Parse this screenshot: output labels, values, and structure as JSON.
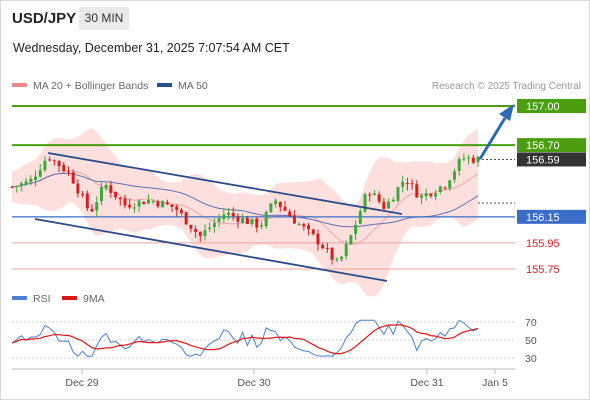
{
  "header": {
    "symbol": "USD/JPY",
    "timeframe": "30 MIN",
    "datetime": "Wednesday, December 31, 2025 7:07:54 AM CET"
  },
  "legend": {
    "ma20": {
      "label": "MA 20 + Bollinger Bands",
      "color": "#f08a8a"
    },
    "ma50": {
      "label": "MA 50",
      "color": "#2a4f8f"
    },
    "credit": "Research © 2025 Trading Central"
  },
  "colors": {
    "up": "#3aaa3a",
    "down": "#d62020",
    "green_level": "#4a9e10",
    "blue_level": "#3a6cc8",
    "red_level": "#d62020",
    "current": "#333333",
    "channel": "#2a4a8a",
    "arrow": "#2d6ab4",
    "band_fill": "#fde0de",
    "rsi": "#4a7fd4",
    "rsi_ma": "#e01515"
  },
  "chart_data": {
    "type": "candlestick",
    "ylim": [
      155.55,
      157.1
    ],
    "current_price": "156.59",
    "levels": [
      {
        "label": "157.00",
        "value": 157.0,
        "kind": "resistance"
      },
      {
        "label": "156.70",
        "value": 156.7,
        "kind": "resistance"
      },
      {
        "label": "156.15",
        "value": 156.15,
        "kind": "pivot"
      },
      {
        "label": "155.95",
        "value": 155.95,
        "kind": "support"
      },
      {
        "label": "155.75",
        "value": 155.75,
        "kind": "support"
      }
    ],
    "x_tick_labels": [
      "Dec 29",
      "Dec 30",
      "Dec 31",
      "Jan 5"
    ],
    "rsi": {
      "legend": [
        "RSI",
        "9MA"
      ],
      "ylim": [
        20,
        80
      ],
      "ticks": [
        "70",
        "50",
        "30"
      ]
    }
  }
}
